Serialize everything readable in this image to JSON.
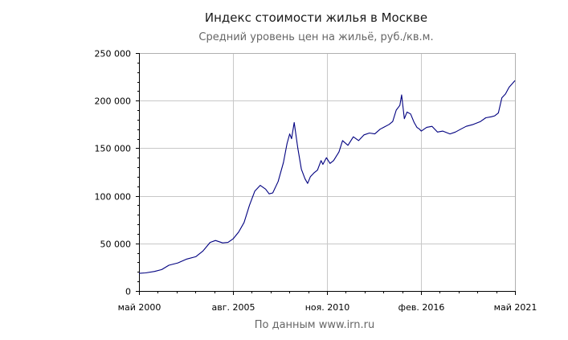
{
  "chart_data": {
    "type": "line",
    "title": "Индекс стоимости жилья в Москве",
    "subtitle": "Средний уровень цен на жильё, руб./кв.м.",
    "source": "По данным www.irn.ru",
    "ylim": [
      0,
      250000
    ],
    "y_ticks": [
      {
        "value": 0,
        "label": "0"
      },
      {
        "value": 50000,
        "label": "50 000"
      },
      {
        "value": 100000,
        "label": "100 000"
      },
      {
        "value": 150000,
        "label": "150 000"
      },
      {
        "value": 200000,
        "label": "200 000"
      },
      {
        "value": 250000,
        "label": "250 000"
      }
    ],
    "x_ticks": [
      {
        "value": 2000.33,
        "label": "май 2000"
      },
      {
        "value": 2005.58,
        "label": "авг. 2005"
      },
      {
        "value": 2010.83,
        "label": "ноя. 2010"
      },
      {
        "value": 2016.08,
        "label": "фев. 2016"
      },
      {
        "value": 2021.33,
        "label": "май 2021"
      }
    ],
    "xlim": [
      2000.33,
      2021.33
    ],
    "grid": true,
    "line_color": "#000080",
    "series": [
      {
        "x": [
          2000.33,
          2000.7,
          2001.2,
          2001.6,
          2002.0,
          2002.5,
          2003.0,
          2003.5,
          2003.9,
          2004.3,
          2004.6,
          2005.0,
          2005.3,
          2005.6,
          2005.9,
          2006.2,
          2006.5,
          2006.8,
          2007.1,
          2007.4,
          2007.6,
          2007.8,
          2008.1,
          2008.4,
          2008.6,
          2008.75,
          2008.85,
          2009.0,
          2009.2,
          2009.4,
          2009.6,
          2009.75,
          2009.9,
          2010.1,
          2010.3,
          2010.5,
          2010.6,
          2010.8,
          2011.0,
          2011.2,
          2011.5,
          2011.7,
          2012.0,
          2012.3,
          2012.6,
          2012.9,
          2013.2,
          2013.5,
          2013.8,
          2014.0,
          2014.3,
          2014.5,
          2014.7,
          2014.9,
          2015.0,
          2015.15,
          2015.3,
          2015.5,
          2015.7,
          2015.85,
          2016.0,
          2016.1,
          2016.4,
          2016.7,
          2017.0,
          2017.3,
          2017.7,
          2018.0,
          2018.3,
          2018.6,
          2019.0,
          2019.4,
          2019.7,
          2020.0,
          2020.2,
          2020.4,
          2020.6,
          2020.8,
          2021.0,
          2021.33
        ],
        "values": [
          18500,
          19000,
          20500,
          22500,
          27000,
          29500,
          33500,
          36000,
          42000,
          51000,
          53000,
          50500,
          51000,
          55000,
          62000,
          72000,
          90000,
          105000,
          111000,
          107000,
          102000,
          103000,
          115000,
          135000,
          155000,
          165000,
          160000,
          177000,
          150000,
          128000,
          118000,
          113000,
          120000,
          124000,
          127000,
          137000,
          133000,
          140000,
          134000,
          137000,
          146000,
          158000,
          153000,
          162000,
          158000,
          164000,
          166000,
          165000,
          170000,
          172000,
          175000,
          178000,
          190000,
          195000,
          206000,
          181000,
          188000,
          186000,
          177000,
          172000,
          170000,
          168000,
          172000,
          173000,
          167000,
          168000,
          165000,
          167000,
          170000,
          173000,
          175000,
          178000,
          182000,
          183000,
          184000,
          187000,
          203000,
          207000,
          214000,
          221000
        ]
      }
    ]
  }
}
